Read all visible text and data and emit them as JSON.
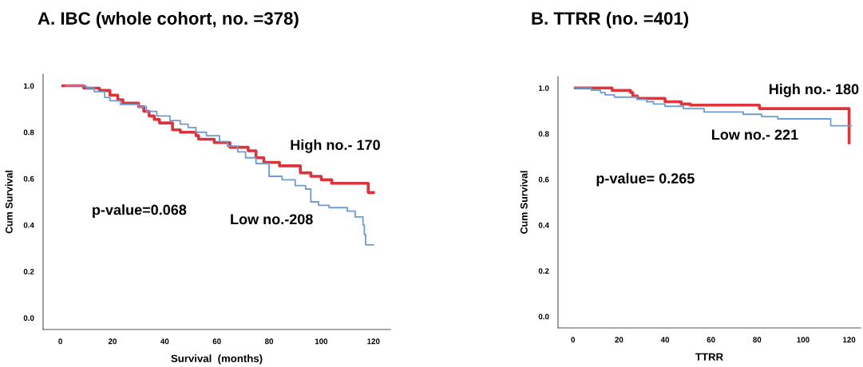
{
  "chart_data": [
    {
      "type": "step",
      "title": "A. IBC (whole cohort, no. =378)",
      "xlabel": "Survival  (months)",
      "ylabel": "Cum Survival",
      "xlim": [
        -6.6,
        126.5
      ],
      "ylim": [
        -0.05,
        1.05
      ],
      "xticks": [
        0,
        20,
        40,
        60,
        80,
        100,
        120
      ],
      "yticks": [
        {
          "value": 0,
          "label": "0.0"
        },
        {
          "value": 0.2,
          "label": "0.2"
        },
        {
          "value": 0.4,
          "label": "0.4"
        },
        {
          "value": 0.6,
          "label": "0.6"
        },
        {
          "value": 0.8,
          "label": "0.8"
        },
        {
          "value": 1,
          "label": "1.0"
        }
      ],
      "grid": false,
      "marker": "none",
      "line_style": "solid",
      "series": [
        {
          "color": "#d9343b",
          "x": [
            1,
            9,
            15,
            19,
            22,
            24,
            30,
            32,
            34,
            36,
            38,
            43,
            46,
            52,
            53,
            59,
            65,
            72,
            75,
            78,
            84,
            92,
            96,
            100,
            104,
            118,
            120
          ],
          "values": [
            1.0,
            0.99,
            0.98,
            0.96,
            0.94,
            0.925,
            0.91,
            0.89,
            0.87,
            0.855,
            0.84,
            0.81,
            0.8,
            0.785,
            0.77,
            0.755,
            0.735,
            0.72,
            0.69,
            0.67,
            0.655,
            0.625,
            0.61,
            0.595,
            0.58,
            0.54,
            0.54
          ]
        },
        {
          "color": "#6f9bd0",
          "x": [
            2,
            10,
            13,
            17,
            19,
            23,
            30,
            33,
            37,
            42,
            46,
            49,
            52,
            56,
            61,
            64,
            68,
            71,
            75,
            80,
            85,
            90,
            94,
            96,
            99,
            103,
            110,
            113,
            116,
            116.5,
            117,
            120
          ],
          "values": [
            1.0,
            0.99,
            0.975,
            0.95,
            0.935,
            0.92,
            0.91,
            0.89,
            0.87,
            0.85,
            0.835,
            0.82,
            0.8,
            0.785,
            0.76,
            0.74,
            0.715,
            0.69,
            0.665,
            0.61,
            0.595,
            0.57,
            0.555,
            0.5,
            0.485,
            0.475,
            0.46,
            0.435,
            0.4,
            0.36,
            0.315,
            0.315
          ]
        }
      ],
      "annotations": [
        "High no.- 170",
        "Low no.-208",
        "p-value=0.068"
      ]
    },
    {
      "type": "step",
      "title": "B. TTRR (no. =401)",
      "xlabel": "TTRR",
      "ylabel": "Cum Survival",
      "xlim": [
        -6.5,
        125
      ],
      "ylim": [
        -0.05,
        1.05
      ],
      "xticks": [
        0,
        20,
        40,
        60,
        80,
        100,
        120
      ],
      "yticks": [
        {
          "value": 0,
          "label": "0.0"
        },
        {
          "value": 0.2,
          "label": "0.2"
        },
        {
          "value": 0.4,
          "label": "0.4"
        },
        {
          "value": 0.6,
          "label": "0.6"
        },
        {
          "value": 0.8,
          "label": "0.8"
        },
        {
          "value": 1,
          "label": "1.0"
        }
      ],
      "grid": false,
      "marker": "none",
      "line_style": "solid",
      "series": [
        {
          "color": "#e0343b",
          "x": [
            1,
            17,
            25,
            26,
            28,
            40,
            47,
            51,
            81,
            120,
            120
          ],
          "values": [
            1.0,
            0.99,
            0.98,
            0.965,
            0.955,
            0.94,
            0.93,
            0.925,
            0.91,
            0.91,
            0.76
          ]
        },
        {
          "color": "#6f9bd0",
          "x": [
            1,
            8,
            12,
            14,
            18,
            28,
            32,
            35,
            40,
            48,
            57,
            74,
            82,
            89,
            112,
            121
          ],
          "values": [
            1.0,
            0.99,
            0.98,
            0.97,
            0.96,
            0.95,
            0.94,
            0.93,
            0.92,
            0.91,
            0.895,
            0.885,
            0.875,
            0.865,
            0.835,
            0.835
          ]
        }
      ],
      "annotations": [
        "High no.- 180",
        "Low no.- 221",
        "p-value= 0.265"
      ]
    }
  ]
}
